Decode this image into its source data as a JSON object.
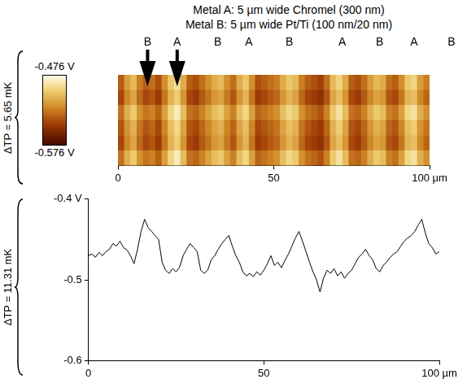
{
  "chart_data": [
    {
      "type": "heatmap",
      "title": "Metal A: 5 µm wide Chromel (300 nm)",
      "subtitle": "Metal B: 5 µm wide Pt/Ti (100 nm/20 nm)",
      "ylabel": "ΔTP = 5.65 mK",
      "annotations": [
        {
          "text": "B",
          "x": 9.5,
          "marker": "arrow"
        },
        {
          "text": "A",
          "x": 19,
          "marker": "arrow"
        },
        {
          "text": "B",
          "x": 32
        },
        {
          "text": "A",
          "x": 42
        },
        {
          "text": "B",
          "x": 55
        },
        {
          "text": "A",
          "x": 72
        },
        {
          "text": "B",
          "x": 84
        },
        {
          "text": "A",
          "x": 95
        },
        {
          "text": "B",
          "x": 107
        }
      ],
      "xlim": [
        0,
        100
      ],
      "xticks": [
        0,
        50,
        {
          "value": 100,
          "label": "100 µm"
        }
      ],
      "tick_labels": "x",
      "grid": false,
      "x_edges": [
        0,
        2,
        4,
        6,
        8,
        10,
        12,
        14,
        16,
        18,
        20,
        22,
        24,
        26,
        28,
        30,
        32,
        34,
        36,
        38,
        40,
        42,
        44,
        46,
        48,
        50,
        52,
        54,
        56,
        58,
        60,
        62,
        64,
        66,
        68,
        70,
        72,
        74,
        76,
        78,
        80,
        82,
        84,
        86,
        88,
        90,
        92,
        94,
        96,
        98,
        100
      ],
      "cells": [
        [
          -0.535,
          -0.515,
          -0.505,
          -0.525,
          -0.535,
          -0.53,
          -0.54,
          -0.52,
          -0.5,
          -0.49,
          -0.51,
          -0.535,
          -0.54,
          -0.53,
          -0.52,
          -0.51,
          -0.505,
          -0.52,
          -0.53,
          -0.51,
          -0.5,
          -0.52,
          -0.54,
          -0.535,
          -0.53,
          -0.525,
          -0.51,
          -0.5,
          -0.505,
          -0.525,
          -0.535,
          -0.54,
          -0.545,
          -0.53,
          -0.505,
          -0.495,
          -0.51,
          -0.535,
          -0.54,
          -0.53,
          -0.515,
          -0.505,
          -0.51,
          -0.53,
          -0.535,
          -0.52,
          -0.5,
          -0.495,
          -0.515,
          -0.525
        ],
        [
          -0.542,
          -0.522,
          -0.512,
          -0.532,
          -0.543,
          -0.538,
          -0.547,
          -0.528,
          -0.507,
          -0.498,
          -0.518,
          -0.542,
          -0.548,
          -0.537,
          -0.528,
          -0.517,
          -0.513,
          -0.527,
          -0.538,
          -0.518,
          -0.507,
          -0.528,
          -0.547,
          -0.543,
          -0.537,
          -0.532,
          -0.518,
          -0.507,
          -0.513,
          -0.532,
          -0.543,
          -0.547,
          -0.552,
          -0.538,
          -0.512,
          -0.503,
          -0.518,
          -0.542,
          -0.548,
          -0.537,
          -0.522,
          -0.513,
          -0.517,
          -0.538,
          -0.542,
          -0.528,
          -0.507,
          -0.503,
          -0.522,
          -0.533
        ],
        [
          -0.529,
          -0.509,
          -0.499,
          -0.519,
          -0.528,
          -0.524,
          -0.534,
          -0.514,
          -0.494,
          -0.484,
          -0.504,
          -0.529,
          -0.533,
          -0.524,
          -0.514,
          -0.504,
          -0.499,
          -0.514,
          -0.524,
          -0.503,
          -0.494,
          -0.514,
          -0.533,
          -0.529,
          -0.524,
          -0.519,
          -0.503,
          -0.494,
          -0.499,
          -0.519,
          -0.529,
          -0.533,
          -0.539,
          -0.524,
          -0.499,
          -0.489,
          -0.504,
          -0.529,
          -0.533,
          -0.524,
          -0.509,
          -0.499,
          -0.504,
          -0.524,
          -0.529,
          -0.514,
          -0.494,
          -0.489,
          -0.509,
          -0.519
        ],
        [
          -0.538,
          -0.518,
          -0.508,
          -0.528,
          -0.538,
          -0.533,
          -0.543,
          -0.523,
          -0.503,
          -0.493,
          -0.513,
          -0.538,
          -0.543,
          -0.533,
          -0.523,
          -0.513,
          -0.508,
          -0.523,
          -0.533,
          -0.513,
          -0.503,
          -0.523,
          -0.543,
          -0.538,
          -0.533,
          -0.528,
          -0.513,
          -0.503,
          -0.508,
          -0.528,
          -0.538,
          -0.543,
          -0.548,
          -0.533,
          -0.508,
          -0.498,
          -0.513,
          -0.538,
          -0.543,
          -0.533,
          -0.518,
          -0.508,
          -0.513,
          -0.533,
          -0.538,
          -0.523,
          -0.503,
          -0.498,
          -0.518,
          -0.528
        ],
        [
          -0.542,
          -0.522,
          -0.512,
          -0.532,
          -0.543,
          -0.538,
          -0.547,
          -0.528,
          -0.507,
          -0.498,
          -0.518,
          -0.542,
          -0.548,
          -0.537,
          -0.528,
          -0.517,
          -0.513,
          -0.527,
          -0.538,
          -0.518,
          -0.507,
          -0.528,
          -0.547,
          -0.543,
          -0.537,
          -0.532,
          -0.518,
          -0.507,
          -0.513,
          -0.532,
          -0.543,
          -0.547,
          -0.552,
          -0.538,
          -0.512,
          -0.503,
          -0.518,
          -0.542,
          -0.548,
          -0.537,
          -0.522,
          -0.513,
          -0.517,
          -0.538,
          -0.542,
          -0.528,
          -0.507,
          -0.503,
          -0.522,
          -0.533
        ],
        [
          -0.529,
          -0.509,
          -0.499,
          -0.519,
          -0.528,
          -0.524,
          -0.534,
          -0.514,
          -0.494,
          -0.484,
          -0.504,
          -0.529,
          -0.533,
          -0.524,
          -0.514,
          -0.504,
          -0.499,
          -0.514,
          -0.524,
          -0.503,
          -0.494,
          -0.514,
          -0.533,
          -0.529,
          -0.524,
          -0.519,
          -0.503,
          -0.494,
          -0.499,
          -0.519,
          -0.529,
          -0.533,
          -0.539,
          -0.524,
          -0.499,
          -0.489,
          -0.504,
          -0.529,
          -0.533,
          -0.524,
          -0.509,
          -0.499,
          -0.504,
          -0.524,
          -0.529,
          -0.514,
          -0.494,
          -0.489,
          -0.509,
          -0.519
        ]
      ],
      "colorbar": {
        "range": [
          -0.576,
          -0.476
        ],
        "ticks": [
          {
            "value": -0.576,
            "label": "-0.576 V"
          },
          {
            "value": -0.476,
            "label": "-0.476 V"
          }
        ]
      }
    },
    {
      "type": "line",
      "ylabel": "ΔTP = 11.31 mK",
      "color": "#000000",
      "grid": false,
      "xlim": [
        0,
        100
      ],
      "xticks": [
        0,
        50,
        {
          "value": 100,
          "label": "100 µm"
        }
      ],
      "ylim": [
        -0.6,
        -0.4
      ],
      "yticks": [
        {
          "value": -0.6,
          "label": "-0.6"
        },
        {
          "value": -0.5,
          "label": "-0.5"
        },
        {
          "value": -0.4,
          "label": "-0.4 V"
        }
      ],
      "x": [
        0,
        1,
        2,
        3,
        4,
        5,
        6,
        7,
        8,
        9,
        10,
        11,
        12,
        13,
        14,
        15,
        16,
        17,
        18,
        19,
        20,
        21,
        22,
        23,
        24,
        25,
        26,
        27,
        28,
        29,
        30,
        31,
        32,
        33,
        34,
        35,
        36,
        37,
        38,
        39,
        40,
        41,
        42,
        43,
        44,
        45,
        46,
        47,
        48,
        49,
        50,
        51,
        52,
        53,
        54,
        55,
        56,
        57,
        58,
        59,
        60,
        61,
        62,
        63,
        64,
        65,
        66,
        67,
        68,
        69,
        70,
        71,
        72,
        73,
        74,
        75,
        76,
        77,
        78,
        79,
        80,
        81,
        82,
        83,
        84,
        85,
        86,
        87,
        88,
        89,
        90,
        91,
        92,
        93,
        94,
        95,
        96,
        97,
        98,
        99,
        100
      ],
      "values": [
        -0.47,
        -0.468,
        -0.472,
        -0.466,
        -0.47,
        -0.465,
        -0.462,
        -0.455,
        -0.458,
        -0.452,
        -0.46,
        -0.463,
        -0.47,
        -0.48,
        -0.462,
        -0.44,
        -0.425,
        -0.435,
        -0.44,
        -0.445,
        -0.45,
        -0.478,
        -0.488,
        -0.492,
        -0.486,
        -0.49,
        -0.484,
        -0.47,
        -0.462,
        -0.455,
        -0.46,
        -0.465,
        -0.488,
        -0.492,
        -0.488,
        -0.475,
        -0.47,
        -0.462,
        -0.455,
        -0.45,
        -0.445,
        -0.458,
        -0.47,
        -0.478,
        -0.49,
        -0.495,
        -0.492,
        -0.496,
        -0.49,
        -0.494,
        -0.488,
        -0.48,
        -0.47,
        -0.482,
        -0.478,
        -0.485,
        -0.476,
        -0.468,
        -0.458,
        -0.448,
        -0.44,
        -0.452,
        -0.465,
        -0.478,
        -0.49,
        -0.5,
        -0.515,
        -0.498,
        -0.488,
        -0.492,
        -0.486,
        -0.495,
        -0.49,
        -0.498,
        -0.492,
        -0.488,
        -0.48,
        -0.472,
        -0.468,
        -0.462,
        -0.47,
        -0.475,
        -0.486,
        -0.49,
        -0.482,
        -0.478,
        -0.472,
        -0.468,
        -0.465,
        -0.458,
        -0.452,
        -0.448,
        -0.445,
        -0.44,
        -0.432,
        -0.425,
        -0.442,
        -0.455,
        -0.46,
        -0.468,
        -0.465
      ]
    }
  ]
}
